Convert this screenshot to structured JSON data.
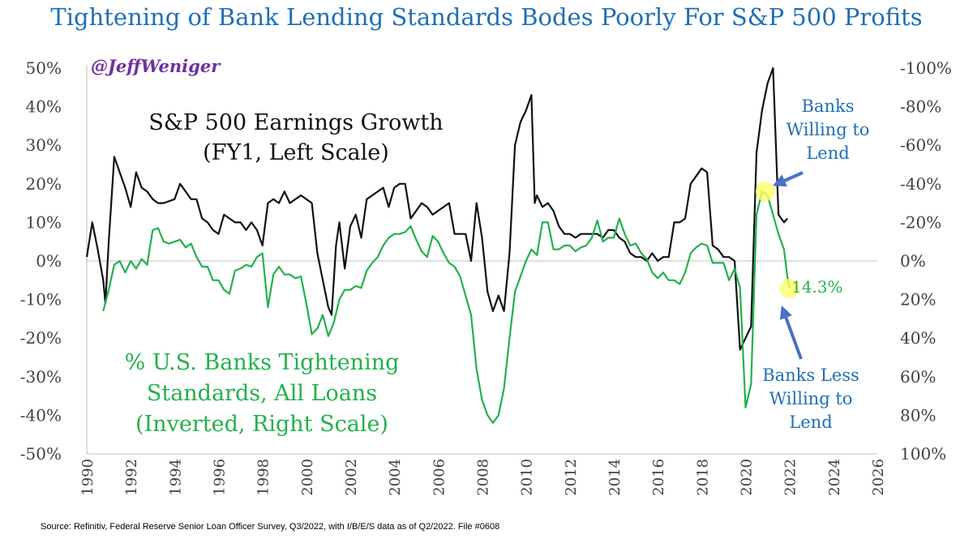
{
  "header": {
    "title": "Tightening of Bank Lending Standards Bodes Poorly For S&P 500 Profits"
  },
  "footer": {
    "source": "Source: Refinitiv, Federal Reserve Senior Loan Officer Survey, Q3/2022, with I/B/E/S data as of Q2/2022. File #0608"
  },
  "colors": {
    "title": "#1f6fb6",
    "eps": "#111111",
    "banks": "#22b14c",
    "handle": "#7030a0",
    "callout": "#1f6fb6",
    "arrow": "#4472c4",
    "highlight": "#ffff66"
  },
  "chart_data": {
    "type": "line",
    "x_range": [
      1990,
      2026
    ],
    "x_ticks": [
      "1990",
      "1992",
      "1994",
      "1996",
      "1998",
      "2000",
      "2002",
      "2004",
      "2006",
      "2008",
      "2010",
      "2012",
      "2014",
      "2016",
      "2018",
      "2020",
      "2022",
      "2024",
      "2026"
    ],
    "left_axis": {
      "range": [
        -50,
        50
      ],
      "ticks": [
        "50%",
        "40%",
        "30%",
        "20%",
        "10%",
        "0%",
        "-10%",
        "-20%",
        "-30%",
        "-40%",
        "-50%"
      ]
    },
    "right_axis": {
      "range_inverted": [
        100,
        -100
      ],
      "ticks": [
        "-100%",
        "-80%",
        "-60%",
        "-40%",
        "-20%",
        "0%",
        "20%",
        "40%",
        "60%",
        "80%",
        "100%"
      ]
    },
    "handle": "@JeffWeniger",
    "series": [
      {
        "name": "S&P 500 Earnings Growth (FY1, Left Scale)",
        "label_lines": [
          "S&P 500 Earnings Growth",
          "(FY1, Left Scale)"
        ],
        "axis": "left",
        "points": [
          [
            1990,
            1
          ],
          [
            1990.25,
            10
          ],
          [
            1990.5,
            3
          ],
          [
            1990.75,
            -5
          ],
          [
            1990.85,
            -11
          ],
          [
            1991.0,
            5
          ],
          [
            1991.25,
            27
          ],
          [
            1991.5,
            23
          ],
          [
            1991.75,
            19
          ],
          [
            1992,
            14
          ],
          [
            1992.25,
            23
          ],
          [
            1992.5,
            19
          ],
          [
            1992.75,
            18
          ],
          [
            1993,
            16
          ],
          [
            1993.25,
            15
          ],
          [
            1993.5,
            15
          ],
          [
            1994,
            16
          ],
          [
            1994.25,
            20
          ],
          [
            1994.5,
            18
          ],
          [
            1994.75,
            16
          ],
          [
            1995,
            16
          ],
          [
            1995.25,
            11
          ],
          [
            1995.5,
            10
          ],
          [
            1995.75,
            8
          ],
          [
            1996,
            7
          ],
          [
            1996.25,
            12
          ],
          [
            1996.5,
            11
          ],
          [
            1996.75,
            10
          ],
          [
            1997,
            10
          ],
          [
            1997.25,
            8
          ],
          [
            1997.5,
            10
          ],
          [
            1997.75,
            8
          ],
          [
            1998,
            4
          ],
          [
            1998.25,
            15
          ],
          [
            1998.5,
            16
          ],
          [
            1998.75,
            15
          ],
          [
            1999,
            18
          ],
          [
            1999.25,
            15
          ],
          [
            1999.5,
            16
          ],
          [
            1999.75,
            17
          ],
          [
            2000,
            16
          ],
          [
            2000.25,
            15
          ],
          [
            2000.5,
            2
          ],
          [
            2000.75,
            -5
          ],
          [
            2001,
            -12
          ],
          [
            2001.15,
            -14
          ],
          [
            2001.35,
            4
          ],
          [
            2001.5,
            10
          ],
          [
            2001.75,
            -2
          ],
          [
            2002,
            9
          ],
          [
            2002.25,
            12
          ],
          [
            2002.5,
            6
          ],
          [
            2002.75,
            16
          ],
          [
            2003,
            17
          ],
          [
            2003.25,
            18
          ],
          [
            2003.5,
            19
          ],
          [
            2003.75,
            14
          ],
          [
            2004,
            19
          ],
          [
            2004.25,
            20
          ],
          [
            2004.5,
            20
          ],
          [
            2004.75,
            11
          ],
          [
            2005,
            13
          ],
          [
            2005.25,
            15
          ],
          [
            2005.5,
            14
          ],
          [
            2005.75,
            12
          ],
          [
            2006,
            13
          ],
          [
            2006.25,
            14
          ],
          [
            2006.5,
            15
          ],
          [
            2006.75,
            7
          ],
          [
            2007,
            7
          ],
          [
            2007.25,
            7
          ],
          [
            2007.5,
            0
          ],
          [
            2007.75,
            15
          ],
          [
            2008,
            6
          ],
          [
            2008.25,
            -8
          ],
          [
            2008.5,
            -13
          ],
          [
            2008.75,
            -9
          ],
          [
            2009,
            -13
          ],
          [
            2009.25,
            2
          ],
          [
            2009.5,
            30
          ],
          [
            2009.75,
            36
          ],
          [
            2010,
            39
          ],
          [
            2010.25,
            43
          ],
          [
            2010.4,
            15
          ],
          [
            2010.5,
            17
          ],
          [
            2010.75,
            14
          ],
          [
            2011,
            15
          ],
          [
            2011.25,
            13
          ],
          [
            2011.5,
            9
          ],
          [
            2011.75,
            7
          ],
          [
            2012,
            7
          ],
          [
            2012.25,
            6
          ],
          [
            2012.5,
            7
          ],
          [
            2012.75,
            7
          ],
          [
            2013,
            7
          ],
          [
            2013.25,
            7
          ],
          [
            2013.5,
            6
          ],
          [
            2013.75,
            8
          ],
          [
            2014,
            8
          ],
          [
            2014.25,
            6
          ],
          [
            2014.5,
            5
          ],
          [
            2014.75,
            2
          ],
          [
            2015,
            1
          ],
          [
            2015.25,
            1
          ],
          [
            2015.5,
            0
          ],
          [
            2015.75,
            2
          ],
          [
            2016,
            0
          ],
          [
            2016.25,
            1
          ],
          [
            2016.5,
            1
          ],
          [
            2016.75,
            10
          ],
          [
            2017,
            10
          ],
          [
            2017.25,
            11
          ],
          [
            2017.5,
            20
          ],
          [
            2017.75,
            22
          ],
          [
            2018,
            24
          ],
          [
            2018.25,
            23
          ],
          [
            2018.5,
            4
          ],
          [
            2018.75,
            3
          ],
          [
            2019,
            1
          ],
          [
            2019.25,
            1
          ],
          [
            2019.5,
            0
          ],
          [
            2019.75,
            -23
          ],
          [
            2020,
            -20
          ],
          [
            2020.25,
            -17
          ],
          [
            2020.5,
            28
          ],
          [
            2020.75,
            39
          ],
          [
            2021,
            46
          ],
          [
            2021.25,
            50
          ],
          [
            2021.5,
            12
          ],
          [
            2021.75,
            10
          ],
          [
            2021.9,
            11
          ]
        ]
      },
      {
        "name": "% U.S. Banks Tightening Standards, All Loans (Inverted, Right Scale)",
        "label_lines": [
          "% U.S. Banks Tightening",
          "Standards, All Loans",
          "(Inverted, Right Scale)"
        ],
        "axis": "right",
        "points": [
          [
            1990.75,
            26
          ],
          [
            1991,
            15
          ],
          [
            1991.25,
            2
          ],
          [
            1991.5,
            0
          ],
          [
            1991.75,
            6
          ],
          [
            1992,
            0
          ],
          [
            1992.25,
            4
          ],
          [
            1992.5,
            -1
          ],
          [
            1992.75,
            2
          ],
          [
            1993,
            -16
          ],
          [
            1993.25,
            -17
          ],
          [
            1993.5,
            -10
          ],
          [
            1993.75,
            -9
          ],
          [
            1994,
            -10
          ],
          [
            1994.25,
            -11
          ],
          [
            1994.5,
            -7
          ],
          [
            1994.75,
            -9
          ],
          [
            1995,
            -2
          ],
          [
            1995.25,
            3
          ],
          [
            1995.5,
            3
          ],
          [
            1995.75,
            10
          ],
          [
            1996,
            10
          ],
          [
            1996.25,
            15
          ],
          [
            1996.5,
            17
          ],
          [
            1996.75,
            5
          ],
          [
            1997,
            4
          ],
          [
            1997.25,
            2
          ],
          [
            1997.5,
            3
          ],
          [
            1997.75,
            -2
          ],
          [
            1998,
            -4
          ],
          [
            1998.25,
            24
          ],
          [
            1998.5,
            7
          ],
          [
            1998.75,
            3
          ],
          [
            1999,
            7
          ],
          [
            1999.25,
            7
          ],
          [
            1999.5,
            9
          ],
          [
            1999.75,
            8
          ],
          [
            2000,
            22
          ],
          [
            2000.25,
            38
          ],
          [
            2000.5,
            35
          ],
          [
            2000.75,
            28
          ],
          [
            2001,
            39
          ],
          [
            2001.25,
            32
          ],
          [
            2001.5,
            20
          ],
          [
            2001.75,
            15
          ],
          [
            2002,
            15
          ],
          [
            2002.25,
            13
          ],
          [
            2002.5,
            14
          ],
          [
            2002.75,
            5
          ],
          [
            2003,
            1
          ],
          [
            2003.25,
            -2
          ],
          [
            2003.5,
            -8
          ],
          [
            2003.75,
            -12
          ],
          [
            2004,
            -14
          ],
          [
            2004.25,
            -14
          ],
          [
            2004.5,
            -15
          ],
          [
            2004.75,
            -18
          ],
          [
            2005,
            -11
          ],
          [
            2005.25,
            -5
          ],
          [
            2005.5,
            -2
          ],
          [
            2005.75,
            -13
          ],
          [
            2006,
            -10
          ],
          [
            2006.25,
            -4
          ],
          [
            2006.5,
            1
          ],
          [
            2006.75,
            3
          ],
          [
            2007,
            8
          ],
          [
            2007.25,
            18
          ],
          [
            2007.5,
            28
          ],
          [
            2007.75,
            56
          ],
          [
            2008,
            72
          ],
          [
            2008.25,
            80
          ],
          [
            2008.5,
            84
          ],
          [
            2008.75,
            80
          ],
          [
            2009,
            66
          ],
          [
            2009.25,
            40
          ],
          [
            2009.5,
            16
          ],
          [
            2009.75,
            8
          ],
          [
            2010,
            0
          ],
          [
            2010.25,
            -6
          ],
          [
            2010.5,
            -3
          ],
          [
            2010.75,
            -20
          ],
          [
            2011,
            -20
          ],
          [
            2011.25,
            -6
          ],
          [
            2011.5,
            -6
          ],
          [
            2011.75,
            -8
          ],
          [
            2012,
            -8
          ],
          [
            2012.25,
            -5
          ],
          [
            2012.5,
            -7
          ],
          [
            2012.75,
            -8
          ],
          [
            2013,
            -12
          ],
          [
            2013.25,
            -21
          ],
          [
            2013.5,
            -10
          ],
          [
            2013.75,
            -12
          ],
          [
            2014,
            -12
          ],
          [
            2014.25,
            -22
          ],
          [
            2014.5,
            -14
          ],
          [
            2014.75,
            -8
          ],
          [
            2015,
            -9
          ],
          [
            2015.25,
            -4
          ],
          [
            2015.5,
            -1
          ],
          [
            2015.75,
            6
          ],
          [
            2016,
            9
          ],
          [
            2016.25,
            6
          ],
          [
            2016.5,
            10
          ],
          [
            2016.75,
            10
          ],
          [
            2017,
            12
          ],
          [
            2017.25,
            6
          ],
          [
            2017.5,
            -4
          ],
          [
            2017.75,
            -7
          ],
          [
            2018,
            -9
          ],
          [
            2018.25,
            -8
          ],
          [
            2018.5,
            1
          ],
          [
            2018.75,
            1
          ],
          [
            2019,
            1
          ],
          [
            2019.25,
            10
          ],
          [
            2019.5,
            4
          ],
          [
            2019.75,
            14
          ],
          [
            2020,
            76
          ],
          [
            2020.25,
            64
          ],
          [
            2020.5,
            -24
          ],
          [
            2020.75,
            -36
          ],
          [
            2021,
            -34
          ],
          [
            2021.25,
            -24
          ],
          [
            2021.5,
            -14
          ],
          [
            2021.75,
            -6
          ],
          [
            2021.9,
            8
          ],
          [
            2022,
            14.3
          ]
        ]
      }
    ],
    "annotations": {
      "latest_value": "14.3%",
      "willing": [
        "Banks",
        "Willing to",
        "Lend"
      ],
      "less_willing": [
        "Banks Less",
        "Willing to",
        "Lend"
      ]
    },
    "highlights": [
      [
        2020.9,
        18,
        "left"
      ],
      [
        2022,
        14.3,
        "right"
      ]
    ]
  }
}
